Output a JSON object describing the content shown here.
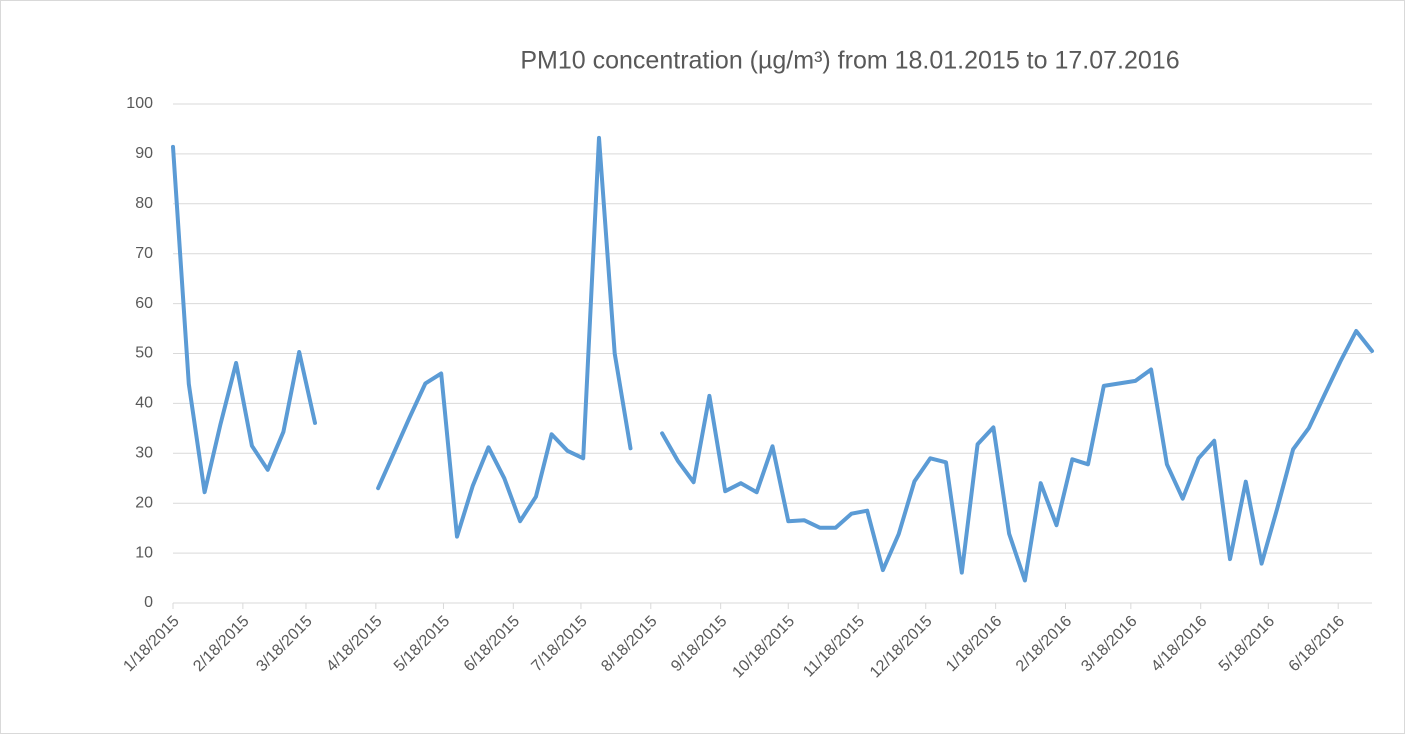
{
  "chart_data": {
    "type": "line",
    "title": "PM10 concentration  (µg/m³) from 18.01.2015 to 17.07.2016",
    "x": [
      "2015-01-18",
      "2015-01-25",
      "2015-02-01",
      "2015-02-08",
      "2015-02-15",
      "2015-02-22",
      "2015-03-01",
      "2015-03-08",
      "2015-03-15",
      "2015-03-22",
      "2015-03-29",
      "2015-04-05",
      "2015-04-12",
      "2015-04-19",
      "2015-04-26",
      "2015-05-03",
      "2015-05-10",
      "2015-05-17",
      "2015-05-24",
      "2015-05-31",
      "2015-06-07",
      "2015-06-14",
      "2015-06-21",
      "2015-06-28",
      "2015-07-05",
      "2015-07-12",
      "2015-07-19",
      "2015-07-26",
      "2015-08-02",
      "2015-08-09",
      "2015-08-16",
      "2015-08-23",
      "2015-08-30",
      "2015-09-06",
      "2015-09-13",
      "2015-09-20",
      "2015-09-27",
      "2015-10-04",
      "2015-10-11",
      "2015-10-18",
      "2015-10-25",
      "2015-11-01",
      "2015-11-08",
      "2015-11-15",
      "2015-11-22",
      "2015-11-29",
      "2015-12-06",
      "2015-12-13",
      "2015-12-20",
      "2015-12-27",
      "2016-01-03",
      "2016-01-10",
      "2016-01-17",
      "2016-01-24",
      "2016-01-31",
      "2016-02-07",
      "2016-02-14",
      "2016-02-21",
      "2016-02-28",
      "2016-03-06",
      "2016-03-13",
      "2016-03-20",
      "2016-03-27",
      "2016-04-03",
      "2016-04-10",
      "2016-04-17",
      "2016-04-24",
      "2016-05-01",
      "2016-05-08",
      "2016-05-15",
      "2016-05-22",
      "2016-05-29",
      "2016-06-05",
      "2016-06-12",
      "2016-06-19",
      "2016-06-26",
      "2016-07-03"
    ],
    "series": [
      {
        "name": "PM10",
        "color": "#5b9bd5",
        "values": [
          91.4,
          43.9,
          22.2,
          35.7,
          48.1,
          31.5,
          26.7,
          34.3,
          50.3,
          36.1,
          null,
          null,
          null,
          23.0,
          30.1,
          37.2,
          44.0,
          46.0,
          13.3,
          23.5,
          31.2,
          25.0,
          16.4,
          21.3,
          33.8,
          30.5,
          29.0,
          93.2,
          50.0,
          31.0,
          null,
          34.0,
          28.5,
          24.2,
          41.5,
          22.4,
          24.0,
          22.2,
          31.4,
          16.4,
          16.6,
          15.1,
          15.1,
          17.9,
          18.5,
          6.6,
          13.8,
          24.4,
          29.0,
          28.2,
          6.1,
          31.8,
          35.2,
          13.9,
          4.5,
          24.0,
          15.6,
          28.8,
          27.8,
          43.5,
          44.0,
          44.5,
          46.8,
          27.8,
          20.9,
          29.0,
          32.5,
          8.8,
          24.3,
          7.9,
          19.0,
          30.8,
          35.1,
          41.8,
          48.4,
          54.5,
          50.5
        ]
      }
    ],
    "xlim": [
      "2015-01-18",
      "2016-07-03"
    ],
    "xticks": [
      {
        "value": "2015-01-18",
        "label": "1/18/2015"
      },
      {
        "value": "2015-02-18",
        "label": "2/18/2015"
      },
      {
        "value": "2015-03-18",
        "label": "3/18/2015"
      },
      {
        "value": "2015-04-18",
        "label": "4/18/2015"
      },
      {
        "value": "2015-05-18",
        "label": "5/18/2015"
      },
      {
        "value": "2015-06-18",
        "label": "6/18/2015"
      },
      {
        "value": "2015-07-18",
        "label": "7/18/2015"
      },
      {
        "value": "2015-08-18",
        "label": "8/18/2015"
      },
      {
        "value": "2015-09-18",
        "label": "9/18/2015"
      },
      {
        "value": "2015-10-18",
        "label": "10/18/2015"
      },
      {
        "value": "2015-11-18",
        "label": "11/18/2015"
      },
      {
        "value": "2015-12-18",
        "label": "12/18/2015"
      },
      {
        "value": "2016-01-18",
        "label": "1/18/2016"
      },
      {
        "value": "2016-02-18",
        "label": "2/18/2016"
      },
      {
        "value": "2016-03-18",
        "label": "3/18/2016"
      },
      {
        "value": "2016-04-18",
        "label": "4/18/2016"
      },
      {
        "value": "2016-05-18",
        "label": "5/18/2016"
      },
      {
        "value": "2016-06-18",
        "label": "6/18/2016"
      }
    ],
    "ylim": [
      0,
      100
    ],
    "yticks": [
      0,
      10,
      20,
      30,
      40,
      50,
      60,
      70,
      80,
      90,
      100
    ],
    "grid": true
  }
}
